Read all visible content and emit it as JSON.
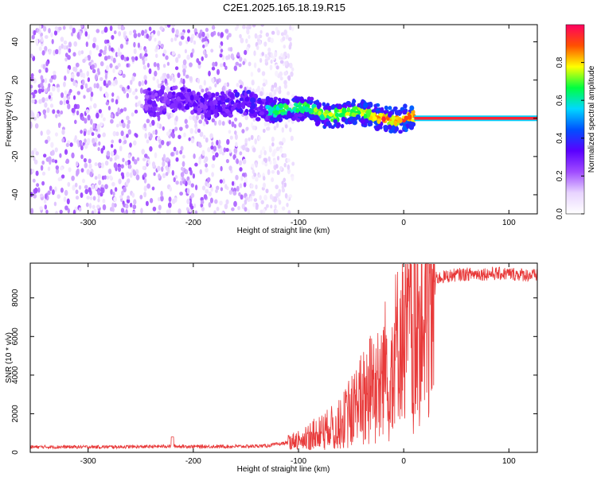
{
  "title": "C2E1.2025.165.18.19.R15",
  "chart_data": [
    {
      "type": "heatmap",
      "xlabel": "Height of straight line (km)",
      "ylabel": "Frequency (Hz)",
      "xlim": [
        -355,
        127
      ],
      "ylim": [
        -50,
        49
      ],
      "xticks": [
        -300,
        -200,
        -100,
        0,
        100
      ],
      "yticks": [
        -40,
        -20,
        0,
        20,
        40
      ],
      "colorbar": {
        "label": "Normalized spectral amplitude",
        "ticks": [
          0.0,
          0.2,
          0.4,
          0.6,
          0.8
        ],
        "tick_labels": [
          "0.0",
          "0.2",
          "0.4",
          "0.6",
          "0.8"
        ],
        "range": [
          0,
          1
        ],
        "colors": [
          "#ffffff",
          "#e8d4ff",
          "#a04cff",
          "#5a00ff",
          "#0050ff",
          "#00d8ff",
          "#00ff40",
          "#ffff00",
          "#ff5000",
          "#ff0060"
        ]
      },
      "features": {
        "noise_region_x": [
          -355,
          -130
        ],
        "signal_band_x": [
          -245,
          10
        ],
        "steady_line_x": [
          10,
          127
        ],
        "steady_line_freq": 0,
        "steady_line_amplitude": 0.95
      }
    },
    {
      "type": "line",
      "xlabel": "Height of straight line (km)",
      "ylabel": "SNR (10 * v/v)",
      "xlim": [
        -355,
        127
      ],
      "ylim": [
        0,
        9800
      ],
      "xticks": [
        -300,
        -200,
        -100,
        0,
        100
      ],
      "yticks": [
        0,
        2000,
        4000,
        6000,
        8000
      ],
      "color": "#e83a3a",
      "profile": {
        "x": [
          -355,
          -300,
          -250,
          -220,
          -200,
          -150,
          -130,
          -110,
          -100,
          -80,
          -60,
          -50,
          -40,
          -30,
          -20,
          -10,
          0,
          10,
          20,
          30,
          50,
          70,
          100,
          127
        ],
        "y": [
          280,
          280,
          290,
          320,
          300,
          310,
          340,
          500,
          700,
          1100,
          1600,
          2300,
          3000,
          3700,
          4400,
          5300,
          6200,
          7700,
          8600,
          9000,
          9200,
          9250,
          9250,
          9150
        ]
      }
    }
  ]
}
